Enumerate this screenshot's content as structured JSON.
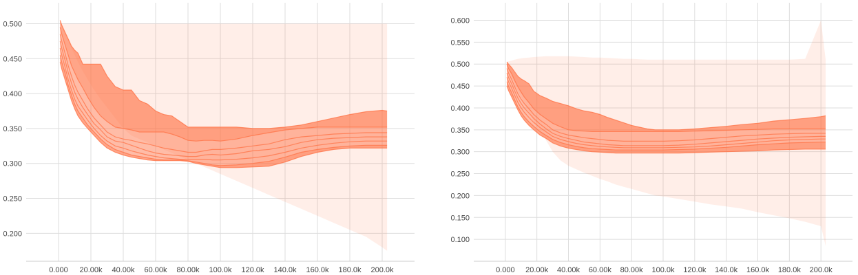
{
  "chart_data": [
    {
      "type": "area",
      "title": "",
      "xlabel": "",
      "ylabel": "",
      "xlim": [
        -20000,
        220000
      ],
      "ylim": [
        0.16,
        0.53
      ],
      "x_ticks": [
        0,
        20000,
        40000,
        60000,
        80000,
        100000,
        120000,
        140000,
        160000,
        180000,
        200000
      ],
      "x_tick_labels": [
        "0.000",
        "20.00k",
        "40.00k",
        "60.00k",
        "80.00k",
        "100.0k",
        "120.0k",
        "140.0k",
        "160.0k",
        "180.0k",
        "200.0k"
      ],
      "y_ticks": [
        0.2,
        0.25,
        0.3,
        0.35,
        0.4,
        0.45,
        0.5
      ],
      "y_tick_labels": [
        "0.200",
        "0.250",
        "0.300",
        "0.350",
        "0.400",
        "0.450",
        "0.500"
      ],
      "grid": true,
      "color": "#ff7043",
      "x": [
        1000,
        2000,
        4000,
        6000,
        8000,
        10000,
        12000,
        15000,
        18000,
        22000,
        26000,
        30000,
        35000,
        40000,
        45000,
        50000,
        55000,
        60000,
        65000,
        70000,
        75000,
        80000,
        85000,
        90000,
        95000,
        100000,
        110000,
        120000,
        130000,
        140000,
        150000,
        160000,
        170000,
        180000,
        190000,
        200000,
        203000
      ],
      "series": [
        {
          "values": [
            0.5,
            0.5,
            0.5,
            0.5,
            0.5,
            0.5,
            0.5,
            0.5,
            0.5,
            0.5,
            0.5,
            0.5,
            0.5,
            0.5,
            0.5,
            0.5,
            0.5,
            0.5,
            0.5,
            0.5,
            0.5,
            0.5,
            0.5,
            0.5,
            0.5,
            0.5,
            0.5,
            0.5,
            0.5,
            0.5,
            0.5,
            0.5,
            0.5,
            0.5,
            0.5,
            0.5,
            0.5
          ]
        },
        {
          "values": [
            0.505,
            0.498,
            0.488,
            0.478,
            0.468,
            0.462,
            0.458,
            0.442,
            0.442,
            0.442,
            0.442,
            0.425,
            0.41,
            0.405,
            0.405,
            0.39,
            0.385,
            0.375,
            0.37,
            0.368,
            0.36,
            0.352,
            0.352,
            0.352,
            0.352,
            0.352,
            0.352,
            0.35,
            0.35,
            0.352,
            0.355,
            0.36,
            0.365,
            0.37,
            0.374,
            0.376,
            0.375
          ]
        },
        {
          "values": [
            0.495,
            0.485,
            0.47,
            0.455,
            0.44,
            0.43,
            0.42,
            0.408,
            0.395,
            0.38,
            0.368,
            0.36,
            0.352,
            0.35,
            0.348,
            0.345,
            0.345,
            0.345,
            0.345,
            0.342,
            0.338,
            0.333,
            0.332,
            0.333,
            0.333,
            0.332,
            0.335,
            0.34,
            0.344,
            0.348,
            0.35,
            0.352,
            0.352,
            0.352,
            0.352,
            0.352,
            0.352
          ]
        },
        {
          "values": [
            0.485,
            0.475,
            0.458,
            0.44,
            0.425,
            0.412,
            0.402,
            0.39,
            0.378,
            0.365,
            0.355,
            0.345,
            0.338,
            0.335,
            0.333,
            0.33,
            0.328,
            0.325,
            0.322,
            0.32,
            0.318,
            0.316,
            0.316,
            0.318,
            0.32,
            0.32,
            0.322,
            0.325,
            0.328,
            0.334,
            0.338,
            0.34,
            0.342,
            0.343,
            0.344,
            0.344,
            0.344
          ]
        },
        {
          "values": [
            0.475,
            0.465,
            0.448,
            0.43,
            0.415,
            0.402,
            0.392,
            0.38,
            0.37,
            0.357,
            0.348,
            0.338,
            0.332,
            0.33,
            0.326,
            0.322,
            0.318,
            0.315,
            0.313,
            0.312,
            0.311,
            0.31,
            0.31,
            0.312,
            0.313,
            0.312,
            0.314,
            0.318,
            0.32,
            0.324,
            0.33,
            0.334,
            0.336,
            0.337,
            0.338,
            0.338,
            0.338
          ]
        },
        {
          "values": [
            0.465,
            0.455,
            0.438,
            0.42,
            0.405,
            0.392,
            0.382,
            0.372,
            0.362,
            0.35,
            0.34,
            0.332,
            0.325,
            0.322,
            0.318,
            0.315,
            0.312,
            0.31,
            0.308,
            0.307,
            0.306,
            0.306,
            0.306,
            0.306,
            0.305,
            0.305,
            0.306,
            0.308,
            0.311,
            0.316,
            0.322,
            0.326,
            0.329,
            0.331,
            0.332,
            0.332,
            0.332
          ]
        },
        {
          "values": [
            0.455,
            0.445,
            0.43,
            0.412,
            0.398,
            0.385,
            0.375,
            0.365,
            0.355,
            0.345,
            0.335,
            0.327,
            0.32,
            0.316,
            0.312,
            0.31,
            0.308,
            0.306,
            0.305,
            0.305,
            0.305,
            0.304,
            0.302,
            0.3,
            0.298,
            0.297,
            0.298,
            0.3,
            0.303,
            0.309,
            0.316,
            0.32,
            0.323,
            0.325,
            0.326,
            0.326,
            0.326
          ]
        },
        {
          "values": [
            0.445,
            0.435,
            0.42,
            0.405,
            0.39,
            0.378,
            0.368,
            0.358,
            0.35,
            0.34,
            0.33,
            0.322,
            0.316,
            0.312,
            0.309,
            0.307,
            0.305,
            0.304,
            0.304,
            0.304,
            0.304,
            0.303,
            0.3,
            0.298,
            0.296,
            0.294,
            0.294,
            0.295,
            0.296,
            0.302,
            0.31,
            0.316,
            0.32,
            0.322,
            0.322,
            0.322,
            0.322
          ]
        },
        {
          "values": [
            0.5,
            0.495,
            0.485,
            0.475,
            0.465,
            0.455,
            0.445,
            0.432,
            0.42,
            0.405,
            0.392,
            0.38,
            0.365,
            0.35,
            0.34,
            0.335,
            0.33,
            0.325,
            0.32,
            0.315,
            0.31,
            0.305,
            0.3,
            0.295,
            0.29,
            0.285,
            0.275,
            0.265,
            0.255,
            0.245,
            0.235,
            0.225,
            0.215,
            0.205,
            0.195,
            0.18,
            0.175
          ]
        }
      ]
    },
    {
      "type": "area",
      "title": "",
      "xlabel": "",
      "ylabel": "",
      "xlim": [
        -20000,
        220000
      ],
      "ylim": [
        0.05,
        0.64
      ],
      "x_ticks": [
        0,
        20000,
        40000,
        60000,
        80000,
        100000,
        120000,
        140000,
        160000,
        180000,
        200000
      ],
      "x_tick_labels": [
        "0.000",
        "20.00k",
        "40.00k",
        "60.00k",
        "80.00k",
        "100.0k",
        "120.0k",
        "140.0k",
        "160.0k",
        "180.0k",
        "200.0k"
      ],
      "y_ticks": [
        0.1,
        0.15,
        0.2,
        0.25,
        0.3,
        0.35,
        0.4,
        0.45,
        0.5,
        0.55,
        0.6
      ],
      "y_tick_labels": [
        "0.100",
        "0.150",
        "0.200",
        "0.250",
        "0.300",
        "0.350",
        "0.400",
        "0.450",
        "0.500",
        "0.550",
        "0.600"
      ],
      "grid": true,
      "color": "#ff7043",
      "x": [
        1000,
        2000,
        4000,
        6000,
        8000,
        10000,
        12000,
        15000,
        18000,
        22000,
        26000,
        30000,
        35000,
        40000,
        45000,
        50000,
        55000,
        60000,
        65000,
        70000,
        75000,
        80000,
        85000,
        90000,
        95000,
        100000,
        110000,
        120000,
        130000,
        140000,
        150000,
        160000,
        170000,
        180000,
        190000,
        200000,
        203000
      ],
      "series": [
        {
          "values": [
            0.505,
            0.506,
            0.508,
            0.51,
            0.512,
            0.513,
            0.514,
            0.515,
            0.516,
            0.517,
            0.518,
            0.518,
            0.518,
            0.518,
            0.517,
            0.516,
            0.515,
            0.515,
            0.514,
            0.513,
            0.512,
            0.512,
            0.511,
            0.51,
            0.51,
            0.51,
            0.51,
            0.51,
            0.51,
            0.51,
            0.51,
            0.51,
            0.51,
            0.51,
            0.512,
            0.6,
            0.51
          ]
        },
        {
          "values": [
            0.505,
            0.5,
            0.492,
            0.482,
            0.472,
            0.466,
            0.462,
            0.455,
            0.438,
            0.428,
            0.422,
            0.415,
            0.41,
            0.405,
            0.398,
            0.393,
            0.39,
            0.385,
            0.378,
            0.372,
            0.366,
            0.36,
            0.356,
            0.352,
            0.35,
            0.35,
            0.35,
            0.352,
            0.355,
            0.358,
            0.362,
            0.365,
            0.37,
            0.373,
            0.376,
            0.38,
            0.382
          ]
        },
        {
          "values": [
            0.5,
            0.49,
            0.478,
            0.462,
            0.448,
            0.436,
            0.425,
            0.412,
            0.398,
            0.385,
            0.375,
            0.365,
            0.357,
            0.35,
            0.348,
            0.347,
            0.346,
            0.346,
            0.346,
            0.346,
            0.346,
            0.346,
            0.346,
            0.346,
            0.346,
            0.346,
            0.346,
            0.347,
            0.348,
            0.349,
            0.35,
            0.351,
            0.352,
            0.352,
            0.352,
            0.352,
            0.352
          ]
        },
        {
          "values": [
            0.49,
            0.48,
            0.465,
            0.448,
            0.432,
            0.42,
            0.41,
            0.398,
            0.385,
            0.372,
            0.362,
            0.35,
            0.343,
            0.338,
            0.335,
            0.332,
            0.33,
            0.328,
            0.326,
            0.325,
            0.324,
            0.324,
            0.324,
            0.324,
            0.324,
            0.324,
            0.325,
            0.327,
            0.33,
            0.333,
            0.336,
            0.338,
            0.34,
            0.341,
            0.342,
            0.342,
            0.342
          ]
        },
        {
          "values": [
            0.48,
            0.47,
            0.455,
            0.438,
            0.422,
            0.41,
            0.4,
            0.388,
            0.376,
            0.363,
            0.352,
            0.342,
            0.335,
            0.33,
            0.326,
            0.322,
            0.32,
            0.318,
            0.316,
            0.315,
            0.314,
            0.314,
            0.314,
            0.314,
            0.314,
            0.314,
            0.315,
            0.317,
            0.32,
            0.323,
            0.326,
            0.329,
            0.331,
            0.333,
            0.334,
            0.335,
            0.335
          ]
        },
        {
          "values": [
            0.47,
            0.46,
            0.445,
            0.428,
            0.412,
            0.4,
            0.39,
            0.378,
            0.367,
            0.355,
            0.345,
            0.335,
            0.328,
            0.323,
            0.319,
            0.316,
            0.314,
            0.312,
            0.311,
            0.31,
            0.309,
            0.309,
            0.309,
            0.309,
            0.309,
            0.309,
            0.31,
            0.311,
            0.313,
            0.316,
            0.319,
            0.322,
            0.325,
            0.327,
            0.328,
            0.329,
            0.329
          ]
        },
        {
          "values": [
            0.46,
            0.45,
            0.435,
            0.418,
            0.402,
            0.39,
            0.38,
            0.368,
            0.358,
            0.346,
            0.337,
            0.328,
            0.321,
            0.316,
            0.312,
            0.309,
            0.307,
            0.306,
            0.305,
            0.304,
            0.304,
            0.304,
            0.304,
            0.304,
            0.304,
            0.304,
            0.305,
            0.306,
            0.308,
            0.31,
            0.313,
            0.316,
            0.318,
            0.32,
            0.321,
            0.322,
            0.322
          ]
        },
        {
          "values": [
            0.45,
            0.44,
            0.425,
            0.41,
            0.395,
            0.382,
            0.372,
            0.36,
            0.35,
            0.338,
            0.33,
            0.32,
            0.313,
            0.308,
            0.305,
            0.302,
            0.3,
            0.299,
            0.298,
            0.297,
            0.297,
            0.297,
            0.297,
            0.297,
            0.297,
            0.297,
            0.297,
            0.298,
            0.299,
            0.3,
            0.301,
            0.302,
            0.304,
            0.305,
            0.306,
            0.306,
            0.306
          ]
        },
        {
          "values": [
            0.495,
            0.485,
            0.47,
            0.455,
            0.438,
            0.425,
            0.41,
            0.39,
            0.37,
            0.345,
            0.325,
            0.3,
            0.28,
            0.268,
            0.26,
            0.252,
            0.245,
            0.238,
            0.232,
            0.225,
            0.22,
            0.215,
            0.21,
            0.205,
            0.2,
            0.198,
            0.192,
            0.186,
            0.18,
            0.175,
            0.17,
            0.162,
            0.155,
            0.148,
            0.14,
            0.13,
            0.085
          ]
        }
      ]
    }
  ]
}
